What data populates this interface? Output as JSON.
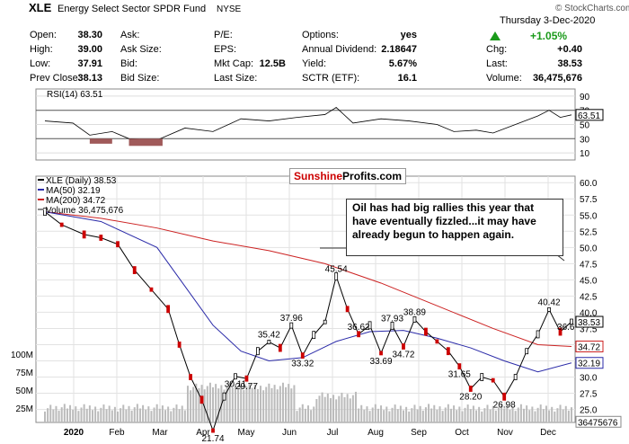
{
  "header": {
    "symbol": "XLE",
    "name": "Energy Select Sector SPDR Fund",
    "exchange": "NYSE",
    "stockcharts": "© StockCharts.com",
    "date": "Thursday  3-Dec-2020",
    "change_pct": "+1.05%",
    "col1": [
      {
        "label": "Open:",
        "value": "38.30"
      },
      {
        "label": "High:",
        "value": "39.00"
      },
      {
        "label": "Low:",
        "value": "37.91"
      },
      {
        "label": "Prev Close:",
        "value": "38.13"
      }
    ],
    "col2": [
      {
        "label": "Ask:",
        "value": ""
      },
      {
        "label": "Ask Size:",
        "value": ""
      },
      {
        "label": "Bid:",
        "value": ""
      },
      {
        "label": "Bid Size:",
        "value": ""
      }
    ],
    "col3": [
      {
        "label": "P/E:",
        "value": ""
      },
      {
        "label": "EPS:",
        "value": ""
      },
      {
        "label": "Mkt Cap:",
        "value": "12.5B"
      },
      {
        "label": "Last Size:",
        "value": ""
      }
    ],
    "col4": [
      {
        "label": "Options:",
        "value": "yes"
      },
      {
        "label": "Annual Dividend:",
        "value": "2.18647"
      },
      {
        "label": "Yield:",
        "value": "5.67%"
      },
      {
        "label": "SCTR (ETF):",
        "value": "16.1"
      }
    ],
    "col5": [
      {
        "label": "Chg:",
        "value": "+0.40"
      },
      {
        "label": "Last:",
        "value": "38.53"
      },
      {
        "label": "Volume:",
        "value": "36,475,676"
      }
    ]
  },
  "colors": {
    "up": "#1a9a1a",
    "price": "#000000",
    "down": "#cc0000",
    "ma50": "#2a2aa8",
    "ma200": "#cc2222",
    "volume": "#bbbbbb",
    "rsi_fill": "#a05a5a",
    "brand": "#cc0000"
  },
  "rsi": {
    "label": "RSI(14) 63.51",
    "ticks": [
      "90",
      "70",
      "50",
      "30",
      "10"
    ],
    "value_tag": "63.51"
  },
  "price_panel": {
    "legend": [
      "XLE (Daily) 38.53",
      "MA(50) 32.19",
      "MA(200) 34.72",
      "Volume 36,475,676"
    ],
    "ticks": [
      "60.0",
      "57.5",
      "55.0",
      "52.5",
      "50.0",
      "47.5",
      "45.0",
      "42.5",
      "40.0",
      "37.5",
      "35.0",
      "32.5",
      "30.0",
      "27.5",
      "25.0"
    ],
    "tags": {
      "last": "38.53",
      "ma200": "34.72",
      "ma50": "32.19",
      "volume": "36475676"
    },
    "vol_ticks": [
      "100M",
      "75M",
      "50M",
      "25M"
    ],
    "months": [
      "2020",
      "Feb",
      "Mar",
      "Apr",
      "May",
      "Jun",
      "Jul",
      "Aug",
      "Sep",
      "Oct",
      "Nov",
      "Dec"
    ],
    "watermark": {
      "a": "Sunshine",
      "b": "Profits.com"
    },
    "annotation": "Oil has had big rallies this year that have eventually fizzled...it may have already begun to happen again."
  },
  "chart_data": {
    "type": "line",
    "title": "XLE Energy Select Sector SPDR Fund NYSE",
    "ylim": [
      23,
      61
    ],
    "price_points": [
      {
        "x": 0,
        "y": 55.5
      },
      {
        "x": 3,
        "y": 53.5
      },
      {
        "x": 7,
        "y": 52.0
      },
      {
        "x": 10,
        "y": 51.5
      },
      {
        "x": 13,
        "y": 50.5
      },
      {
        "x": 16,
        "y": 46.5
      },
      {
        "x": 19,
        "y": 43.5
      },
      {
        "x": 22,
        "y": 40.5
      },
      {
        "x": 24,
        "y": 35.0
      },
      {
        "x": 26,
        "y": 30.0
      },
      {
        "x": 28,
        "y": 26.5
      },
      {
        "x": 30,
        "y": 21.74
      },
      {
        "x": 32,
        "y": 27.0
      },
      {
        "x": 34,
        "y": 30.11
      },
      {
        "x": 36,
        "y": 29.77
      },
      {
        "x": 38,
        "y": 34.0
      },
      {
        "x": 40,
        "y": 35.42
      },
      {
        "x": 42,
        "y": 34.5
      },
      {
        "x": 44,
        "y": 37.96
      },
      {
        "x": 46,
        "y": 33.32
      },
      {
        "x": 48,
        "y": 36.5
      },
      {
        "x": 50,
        "y": 38.5
      },
      {
        "x": 52,
        "y": 45.54
      },
      {
        "x": 54,
        "y": 40.5
      },
      {
        "x": 56,
        "y": 36.62
      },
      {
        "x": 58,
        "y": 38.0
      },
      {
        "x": 60,
        "y": 33.69
      },
      {
        "x": 62,
        "y": 37.93
      },
      {
        "x": 64,
        "y": 34.72
      },
      {
        "x": 66,
        "y": 38.89
      },
      {
        "x": 68,
        "y": 37.0
      },
      {
        "x": 70,
        "y": 35.5
      },
      {
        "x": 72,
        "y": 34.0
      },
      {
        "x": 74,
        "y": 31.65
      },
      {
        "x": 76,
        "y": 28.2
      },
      {
        "x": 78,
        "y": 30.0
      },
      {
        "x": 80,
        "y": 29.5
      },
      {
        "x": 82,
        "y": 26.98
      },
      {
        "x": 84,
        "y": 30.0
      },
      {
        "x": 86,
        "y": 34.0
      },
      {
        "x": 88,
        "y": 36.6
      },
      {
        "x": 90,
        "y": 40.42
      },
      {
        "x": 92,
        "y": 37.0
      },
      {
        "x": 94,
        "y": 38.53
      }
    ],
    "labeled_levels": [
      {
        "x": 30,
        "y": 21.74,
        "label": "21.74"
      },
      {
        "x": 34,
        "y": 30.11,
        "label": "30.11"
      },
      {
        "x": 36,
        "y": 29.77,
        "label": "29.77"
      },
      {
        "x": 40,
        "y": 35.42,
        "label": "35.42"
      },
      {
        "x": 44,
        "y": 37.96,
        "label": "37.96"
      },
      {
        "x": 46,
        "y": 33.32,
        "label": "33.32"
      },
      {
        "x": 52,
        "y": 45.54,
        "label": "45.54"
      },
      {
        "x": 56,
        "y": 36.62,
        "label": "36.62"
      },
      {
        "x": 60,
        "y": 33.69,
        "label": "33.69"
      },
      {
        "x": 62,
        "y": 37.93,
        "label": "37.93"
      },
      {
        "x": 64,
        "y": 34.72,
        "label": "34.72"
      },
      {
        "x": 66,
        "y": 38.89,
        "label": "38.89"
      },
      {
        "x": 74,
        "y": 31.65,
        "label": "31.65"
      },
      {
        "x": 76,
        "y": 28.2,
        "label": "28.20"
      },
      {
        "x": 82,
        "y": 26.98,
        "label": "26.98"
      },
      {
        "x": 90,
        "y": 40.42,
        "label": "40.42"
      },
      {
        "x": 93,
        "y": 36.6,
        "label": "36.6"
      }
    ],
    "ma200": [
      [
        0,
        55.5
      ],
      [
        10,
        54.5
      ],
      [
        20,
        53
      ],
      [
        30,
        51
      ],
      [
        40,
        49.5
      ],
      [
        50,
        47.5
      ],
      [
        60,
        44.5
      ],
      [
        70,
        41
      ],
      [
        80,
        37.5
      ],
      [
        88,
        35
      ],
      [
        94,
        34.72
      ]
    ],
    "ma50": [
      [
        0,
        55.5
      ],
      [
        10,
        54
      ],
      [
        20,
        50
      ],
      [
        25,
        44
      ],
      [
        30,
        38
      ],
      [
        35,
        34
      ],
      [
        40,
        32.5
      ],
      [
        46,
        33
      ],
      [
        52,
        35.5
      ],
      [
        58,
        37
      ],
      [
        64,
        37.2
      ],
      [
        70,
        36
      ],
      [
        76,
        34.5
      ],
      [
        82,
        32.5
      ],
      [
        88,
        30.8
      ],
      [
        94,
        32.19
      ]
    ],
    "rsi": [
      [
        0,
        55
      ],
      [
        5,
        52
      ],
      [
        8,
        35
      ],
      [
        12,
        40
      ],
      [
        15,
        30
      ],
      [
        20,
        28
      ],
      [
        25,
        45
      ],
      [
        30,
        40
      ],
      [
        35,
        58
      ],
      [
        40,
        55
      ],
      [
        45,
        60
      ],
      [
        50,
        64
      ],
      [
        52,
        74
      ],
      [
        55,
        52
      ],
      [
        60,
        58
      ],
      [
        65,
        55
      ],
      [
        70,
        50
      ],
      [
        73,
        40
      ],
      [
        77,
        42
      ],
      [
        80,
        38
      ],
      [
        84,
        50
      ],
      [
        88,
        62
      ],
      [
        90,
        70
      ],
      [
        92,
        60
      ],
      [
        94,
        63.51
      ]
    ]
  }
}
